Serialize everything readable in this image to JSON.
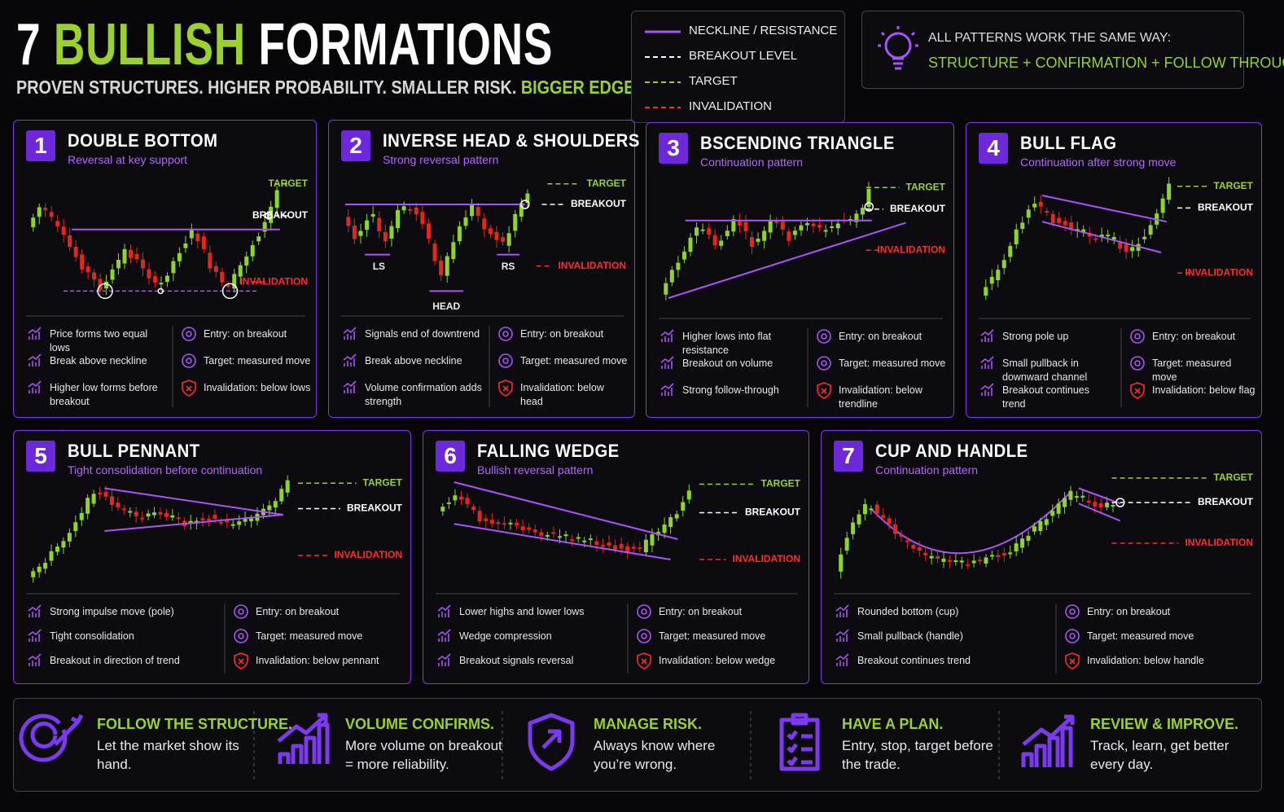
{
  "header": {
    "title": {
      "number": "7",
      "highlight": "BULLISH",
      "rest": "FORMATIONS"
    },
    "subtitle": "PROVEN STRUCTURES. HIGHER PROBABILITY. SMALLER RISK.",
    "subtitle_highlight": "BIGGER EDGE."
  },
  "legend": [
    {
      "label": "NECKLINE / RESISTANCE",
      "style": "solid",
      "color": "#a855f7"
    },
    {
      "label": "BREAKOUT LEVEL",
      "style": "dashed",
      "color": "#ffffff"
    },
    {
      "label": "TARGET",
      "style": "dashed",
      "color": "#9ad12f"
    },
    {
      "label": "INVALIDATION",
      "style": "dashed",
      "color": "#ff2b2b"
    }
  ],
  "tip": {
    "line1": "ALL PATTERNS WORK THE SAME WAY:",
    "line2": "STRUCTURE + CONFIRMATION + FOLLOW THROUGH"
  },
  "patterns": [
    {
      "number": "1",
      "title": "DOUBLE BOTTOM",
      "subtitle": "Reversal at key support",
      "target": "TARGET",
      "breakout": "BREAKOUT",
      "invalidation": "INVALIDATION",
      "left": [
        "Price forms two equal lows",
        "Break above neckline",
        "Higher low forms before breakout"
      ],
      "right": [
        "Entry: on breakout",
        "Target: measured move",
        "Invalidation: below lows"
      ]
    },
    {
      "number": "2",
      "title": "INVERSE HEAD & SHOULDERS",
      "subtitle": "Strong reversal pattern",
      "target": "TARGET",
      "breakout": "BREAKOUT",
      "invalidation": "INVALIDATION",
      "extra": [
        "LS",
        "HEAD",
        "RS"
      ],
      "left": [
        "Signals end of downtrend",
        "Break above neckline",
        "Volume confirmation adds strength"
      ],
      "right": [
        "Entry: on breakout",
        "Target: measured move",
        "Invalidation: below head"
      ]
    },
    {
      "number": "3",
      "title": "BSCENDING TRIANGLE",
      "subtitle": "Continuation pattern",
      "target": "TARGET",
      "breakout": "BREAKOUT",
      "invalidation": "INVALIDATION",
      "left": [
        "Higher lows into flat resistance",
        "Breakout on volume",
        "Strong follow-through"
      ],
      "right": [
        "Entry: on breakout",
        "Target: measured move",
        "Invalidation: below trendline"
      ]
    },
    {
      "number": "4",
      "title": "BULL FLAG",
      "subtitle": "Continuation after strong move",
      "target": "TARGET",
      "breakout": "BREAKOUT",
      "invalidation": "INVALIDATION",
      "left": [
        "Strong pole up",
        "Small pullback in downward channel",
        "Breakout continues trend"
      ],
      "right": [
        "Entry: on breakout",
        "Target: measured move",
        "Invalidation: below flag"
      ]
    },
    {
      "number": "5",
      "title": "BULL PENNANT",
      "subtitle": "Tight consolidation before continuation",
      "target": "TARGET",
      "breakout": "BREAKOUT",
      "invalidation": "INVALIDATION",
      "left": [
        "Strong impulse move (pole)",
        "Tight consolidation",
        "Breakout in direction of trend"
      ],
      "right": [
        "Entry: on breakout",
        "Target: measured move",
        "Invalidation: below pennant"
      ]
    },
    {
      "number": "6",
      "title": "FALLING WEDGE",
      "subtitle": "Bullish reversal pattern",
      "target": "TARGET",
      "breakout": "BREAKOUT",
      "invalidation": "INVALIDATION",
      "left": [
        "Lower highs and lower lows",
        "Wedge compression",
        "Breakout signals reversal"
      ],
      "right": [
        "Entry: on breakout",
        "Target: measured move",
        "Invalidation: below wedge"
      ]
    },
    {
      "number": "7",
      "title": "CUP AND HANDLE",
      "subtitle": "Continuation pattern",
      "target": "TARGET",
      "breakout": "BREAKOUT",
      "invalidation": "INVALIDATION",
      "left": [
        "Rounded bottom (cup)",
        "Small pullback (handle)",
        "Breakout continues trend"
      ],
      "right": [
        "Entry: on breakout",
        "Target: measured move",
        "Invalidation: below handle"
      ]
    }
  ],
  "footer": [
    {
      "title": "FOLLOW THE STRUCTURE.",
      "text": "Let the market show its hand."
    },
    {
      "title": "VOLUME CONFIRMS.",
      "text": "More volume on breakout = more reliability."
    },
    {
      "title": "MANAGE RISK.",
      "text": "Always know where you’re wrong."
    },
    {
      "title": "HAVE A PLAN.",
      "text": "Entry, stop, target before the trade."
    },
    {
      "title": "REVIEW & IMPROVE.",
      "text": "Track, learn, get better every day."
    }
  ]
}
